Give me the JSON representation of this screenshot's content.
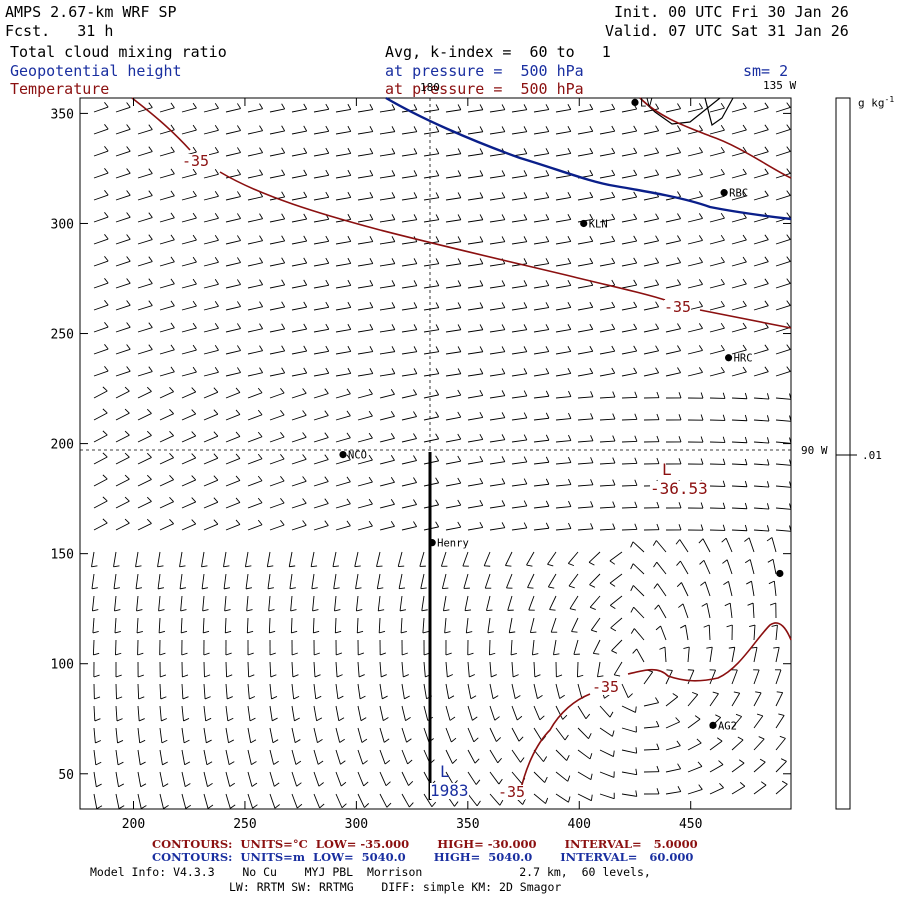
{
  "header": {
    "model": "AMPS 2.67-km WRF SP",
    "forecast": "Fcst.   31 h",
    "init": "Init. 00 UTC Fri 30 Jan 26",
    "valid": "Valid. 07 UTC Sat 31 Jan 26",
    "field1": "Total cloud mixing ratio",
    "field1_info": "Avg, k-index =  60 to   1",
    "field2": "Geopotential height",
    "field2_info": "at pressure =  500 hPa",
    "smoothing": "sm= 2",
    "field3": "Temperature",
    "field3_info": "at pressure =  500 hPa"
  },
  "map": {
    "lon_180": "180",
    "lon_135": "135 W",
    "lon_90": "90 W",
    "x_ticks": [
      "200",
      "250",
      "300",
      "350",
      "400",
      "450"
    ],
    "y_ticks": [
      "350",
      "300",
      "250",
      "200",
      "150",
      "100",
      "50"
    ],
    "stations": [
      {
        "name": "LV",
        "x": 425,
        "y": 355
      },
      {
        "name": "RBC",
        "x": 465,
        "y": 314
      },
      {
        "name": "KLN",
        "x": 402,
        "y": 300
      },
      {
        "name": "HRC",
        "x": 467,
        "y": 239
      },
      {
        "name": "NCO",
        "x": 294,
        "y": 195
      },
      {
        "name": "Henry",
        "x": 334,
        "y": 155
      },
      {
        "name": "AG2",
        "x": 460,
        "y": 72
      },
      {
        "name": "",
        "x": 490,
        "y": 141
      }
    ],
    "labels": {
      "temp_minus35_a": "-35",
      "temp_minus35_b": "-35",
      "temp_minus35_c": "-35",
      "temp_minus35_d": "-35",
      "low_marker_1": "L",
      "low_value_1": "-36.53",
      "low_marker_2": "L",
      "low_value_2": "1983"
    }
  },
  "colorbar": {
    "unit": "g kg",
    "unit_sup": "-1",
    "value": ".01"
  },
  "footer": {
    "contours_temp": "CONTOURS:  UNITS=°C  LOW= -35.000       HIGH= -30.000       INTERVAL=   5.0000",
    "contours_height": "CONTOURS:  UNITS=m  LOW=  5040.0       HIGH=  5040.0       INTERVAL=   60.000",
    "model_info": "Model Info: V4.3.3    No Cu    MYJ PBL  Morrison              2.7 km,  60 levels,",
    "model_info2": "LW: RRTM SW: RRTMG    DIFF: simple KM: 2D Smagor"
  },
  "colors": {
    "geopotential": "#0a1f8a",
    "temperature": "#8b1010",
    "wind": "#000000"
  }
}
